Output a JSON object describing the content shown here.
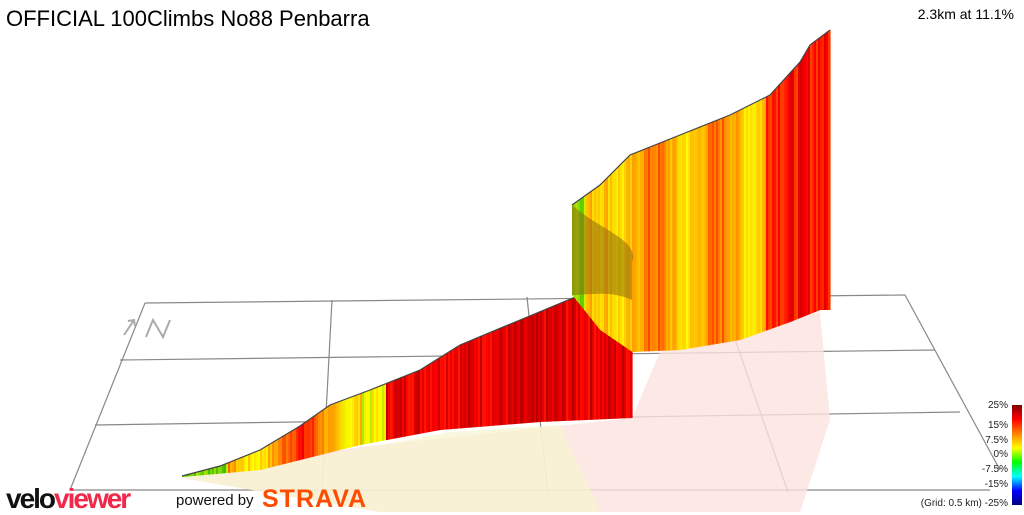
{
  "header": {
    "title": "OFFICIAL 100Climbs No88 Penbarra",
    "summary": "2.3km at 11.1%"
  },
  "legend": {
    "ticks": [
      "25%",
      "15%",
      "7.5%",
      "0%",
      "-7.5%",
      "-15%",
      "-25%"
    ],
    "grid_note": "(Grid: 0.5 km)",
    "colors": [
      "#800000",
      "#ff0000",
      "#ff8000",
      "#ffff00",
      "#00ff00",
      "#00ffff",
      "#0000ff",
      "#000080"
    ]
  },
  "branding": {
    "logo_part1": "velo",
    "logo_part2": "viewer",
    "powered_by": "powered by",
    "strava": "STRAVA"
  },
  "compass": {
    "label": "N",
    "icon": "north-arrow-icon"
  },
  "chart_data": {
    "type": "area",
    "title": "OFFICIAL 100Climbs No88 Penbarra",
    "distance_km": 2.3,
    "avg_gradient_pct": 11.1,
    "grid_spacing_km": 0.5,
    "color_scale_range_pct": [
      -25,
      25
    ],
    "grid": true,
    "legend_placement": "bottom-right"
  }
}
